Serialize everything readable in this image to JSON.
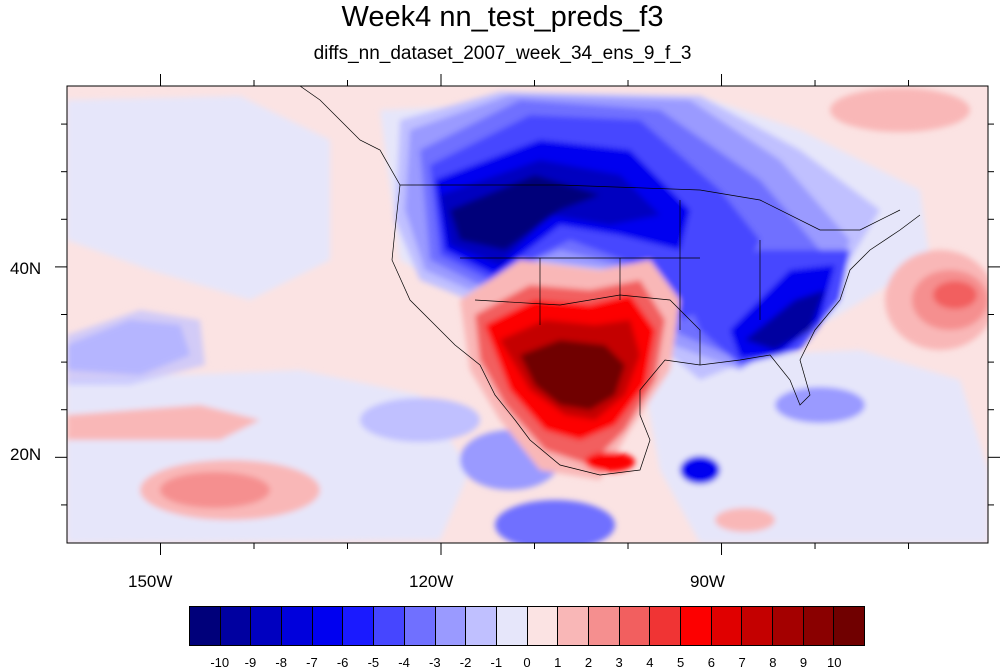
{
  "title": "Week4 nn_test_preds_f3",
  "subtitle": "diffs_nn_dataset_2007_week_34_ens_9_f_3",
  "lat_labels": [
    "40N",
    "20N"
  ],
  "lon_labels": [
    "150W",
    "120W",
    "90W"
  ],
  "colorbar": {
    "labels": [
      "-10",
      "-9",
      "-8",
      "-7",
      "-6",
      "-5",
      "-4",
      "-3",
      "-2",
      "-1",
      "0",
      "1",
      "2",
      "3",
      "4",
      "5",
      "6",
      "7",
      "8",
      "9",
      "10"
    ],
    "colors": [
      "#00007a",
      "#0000a0",
      "#0000c0",
      "#0000dc",
      "#0000f0",
      "#1a1aff",
      "#4646ff",
      "#7070ff",
      "#9a9aff",
      "#c0c0ff",
      "#e6e6fa",
      "#fbe3e3",
      "#f9b7b7",
      "#f58f8f",
      "#f25f5f",
      "#f03434",
      "#fd0000",
      "#e00000",
      "#c40000",
      "#a40000",
      "#8a0000",
      "#700000"
    ]
  },
  "chart_data": {
    "type": "heatmap",
    "title": "Week4 nn_test_preds_f3",
    "subtitle": "diffs_nn_dataset_2007_week_34_ens_9_f_3",
    "lon_range": [
      -160,
      -61
    ],
    "lat_range": [
      11,
      59
    ],
    "x_ticks": [
      "150W",
      "120W",
      "90W"
    ],
    "y_ticks": [
      "40N",
      "20N"
    ],
    "levels": [
      -10,
      -9,
      -8,
      -7,
      -6,
      -5,
      -4,
      -3,
      -2,
      -1,
      0,
      1,
      2,
      3,
      4,
      5,
      6,
      7,
      8,
      9,
      10
    ],
    "features": [
      {
        "type": "negative",
        "level": -8,
        "lon": -110,
        "lat": 45
      },
      {
        "type": "negative",
        "level": -6,
        "lon": -100,
        "lat": 53
      },
      {
        "type": "negative",
        "level": -5,
        "lon": -82,
        "lat": 32
      },
      {
        "type": "negative",
        "level": -4,
        "lon": -88,
        "lat": 18
      },
      {
        "type": "negative",
        "level": -3,
        "lon": -154,
        "lat": 33
      },
      {
        "type": "negative",
        "level": -3,
        "lon": -113,
        "lat": 19
      },
      {
        "type": "positive",
        "level": 10,
        "lon": -103,
        "lat": 29
      },
      {
        "type": "positive",
        "level": 3,
        "lon": -67,
        "lat": 37
      },
      {
        "type": "positive",
        "level": 3,
        "lon": -146,
        "lat": 17
      }
    ]
  }
}
